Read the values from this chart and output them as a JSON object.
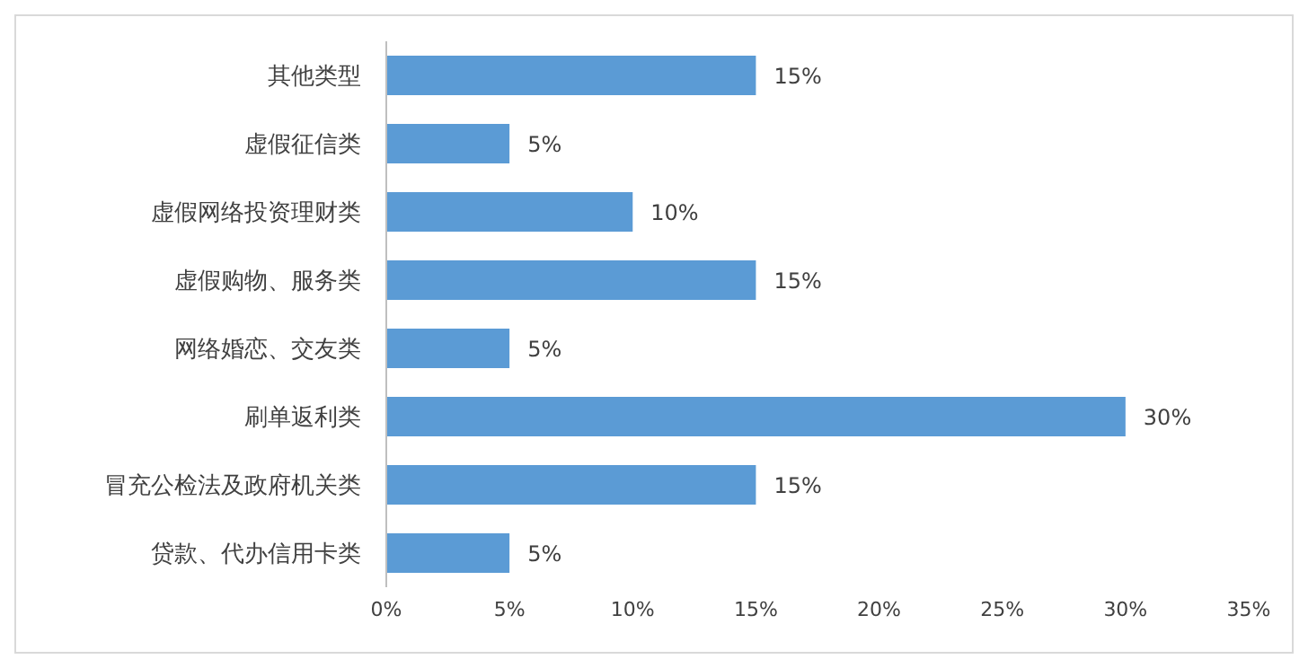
{
  "chart_data": {
    "type": "bar",
    "orientation": "horizontal",
    "categories": [
      "其他类型",
      "虚假征信类",
      "虚假网络投资理财类",
      "虚假购物、服务类",
      "网络婚恋、交友类",
      "刷单返利类",
      "冒充公检法及政府机关类",
      "贷款、代办信用卡类"
    ],
    "values": [
      15,
      5,
      10,
      15,
      5,
      30,
      15,
      5
    ],
    "value_labels": [
      "15%",
      "5%",
      "10%",
      "15%",
      "5%",
      "30%",
      "15%",
      "5%"
    ],
    "color": "#5b9bd5",
    "xlim": [
      0,
      35
    ],
    "xticks": [
      {
        "value": 0,
        "label": "0%"
      },
      {
        "value": 5,
        "label": "5%"
      },
      {
        "value": 10,
        "label": "10%"
      },
      {
        "value": 15,
        "label": "15%"
      },
      {
        "value": 20,
        "label": "20%"
      },
      {
        "value": 25,
        "label": "25%"
      },
      {
        "value": 30,
        "label": "30%"
      },
      {
        "value": 35,
        "label": "35%"
      }
    ],
    "grid": false,
    "legend": false
  }
}
